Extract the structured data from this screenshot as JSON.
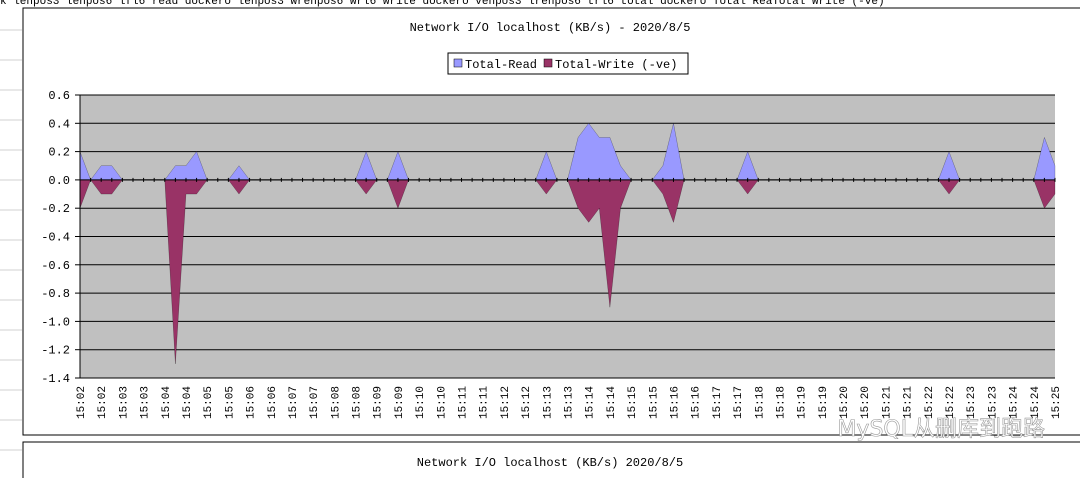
{
  "sheet_header": "k lenpos3 lenpos6 lfl6 read  dockero lenpos3 wrenpos6 wrl6 write dockero venpos3 lrenpos6 trl6 total dockero Total ReaTotal Write (-ve)",
  "chart_data": {
    "type": "area",
    "title": "Network I/O localhost (KB/s) - 2020/8/5",
    "legend": "top",
    "grid": true,
    "categories": [
      "15:02",
      null,
      "15:02",
      null,
      "15:03",
      null,
      "15:03",
      null,
      "15:04",
      null,
      "15:04",
      null,
      "15:05",
      null,
      "15:05",
      null,
      "15:06",
      null,
      "15:06",
      null,
      "15:07",
      null,
      "15:07",
      null,
      "15:08",
      null,
      "15:08",
      null,
      "15:09",
      null,
      "15:09",
      null,
      "15:10",
      null,
      "15:10",
      null,
      "15:11",
      null,
      "15:11",
      null,
      "15:12",
      null,
      "15:12",
      null,
      "15:13",
      null,
      "15:13",
      null,
      "15:14",
      null,
      "15:14",
      null,
      "15:15",
      null,
      "15:15",
      null,
      "15:16",
      null,
      "15:16",
      null,
      "15:17",
      null,
      "15:17",
      null,
      "15:18",
      null,
      "15:18",
      null,
      "15:19",
      null,
      "15:19",
      null,
      "15:20",
      null,
      "15:20",
      null,
      "15:21",
      null,
      "15:21",
      null,
      "15:22",
      null,
      "15:22",
      null,
      "15:23",
      null,
      "15:23",
      null,
      "15:24",
      null,
      "15:24",
      null,
      "15:25"
    ],
    "series": [
      {
        "name": "Total-Read",
        "color": "#9999ff",
        "values": [
          0.2,
          0,
          0.1,
          0.1,
          0,
          0,
          0,
          0,
          0,
          0.1,
          0.1,
          0.2,
          0,
          0,
          0,
          0.1,
          0,
          0,
          0,
          0,
          0,
          0,
          0,
          0,
          0,
          0,
          0,
          0.2,
          0,
          0,
          0.2,
          0,
          0,
          0,
          0,
          0,
          0,
          0,
          0,
          0,
          0,
          0,
          0,
          0,
          0.2,
          0,
          0,
          0.3,
          0.4,
          0.3,
          0.3,
          0.1,
          0,
          0,
          0,
          0.1,
          0.4,
          0,
          0,
          0,
          0,
          0,
          0,
          0.2,
          0,
          0,
          0,
          0,
          0,
          0,
          0,
          0,
          0,
          0,
          0,
          0,
          0,
          0,
          0,
          0,
          0,
          0,
          0.2,
          0,
          0,
          0,
          0,
          0,
          0,
          0,
          0,
          0.3,
          0.1
        ]
      },
      {
        "name": "Total-Write (-ve)",
        "color": "#993366",
        "values": [
          -0.2,
          0,
          -0.1,
          -0.1,
          0,
          0,
          0,
          0,
          0,
          -1.3,
          -0.1,
          -0.1,
          0,
          0,
          0,
          -0.1,
          0,
          0,
          0,
          0,
          0,
          0,
          0,
          0,
          0,
          0,
          0,
          -0.1,
          0,
          0,
          -0.2,
          0,
          0,
          0,
          0,
          0,
          0,
          0,
          0,
          0,
          0,
          0,
          0,
          0,
          -0.1,
          0,
          0,
          -0.2,
          -0.3,
          -0.2,
          -0.9,
          -0.2,
          0,
          0,
          0,
          -0.1,
          -0.3,
          0,
          0,
          0,
          0,
          0,
          0,
          -0.1,
          0,
          0,
          0,
          0,
          0,
          0,
          0,
          0,
          0,
          0,
          0,
          0,
          0,
          0,
          0,
          0,
          0,
          0,
          -0.1,
          0,
          0,
          0,
          0,
          0,
          0,
          0,
          0,
          -0.2,
          -0.1
        ]
      }
    ],
    "ylim": [
      -1.4,
      0.6
    ],
    "yticks": [
      0.6,
      0.4,
      0.2,
      {
        "value": 0,
        "label": "0.0"
      },
      -0.2,
      -0.4,
      -0.6,
      -0.8,
      {
        "value": -1,
        "label": "-1.0"
      },
      -1.2,
      -1.4
    ]
  },
  "next_chart": {
    "title": "Network I/O localhost (KB/s)  2020/8/5"
  },
  "watermark": "MySQL从删库到跑路"
}
